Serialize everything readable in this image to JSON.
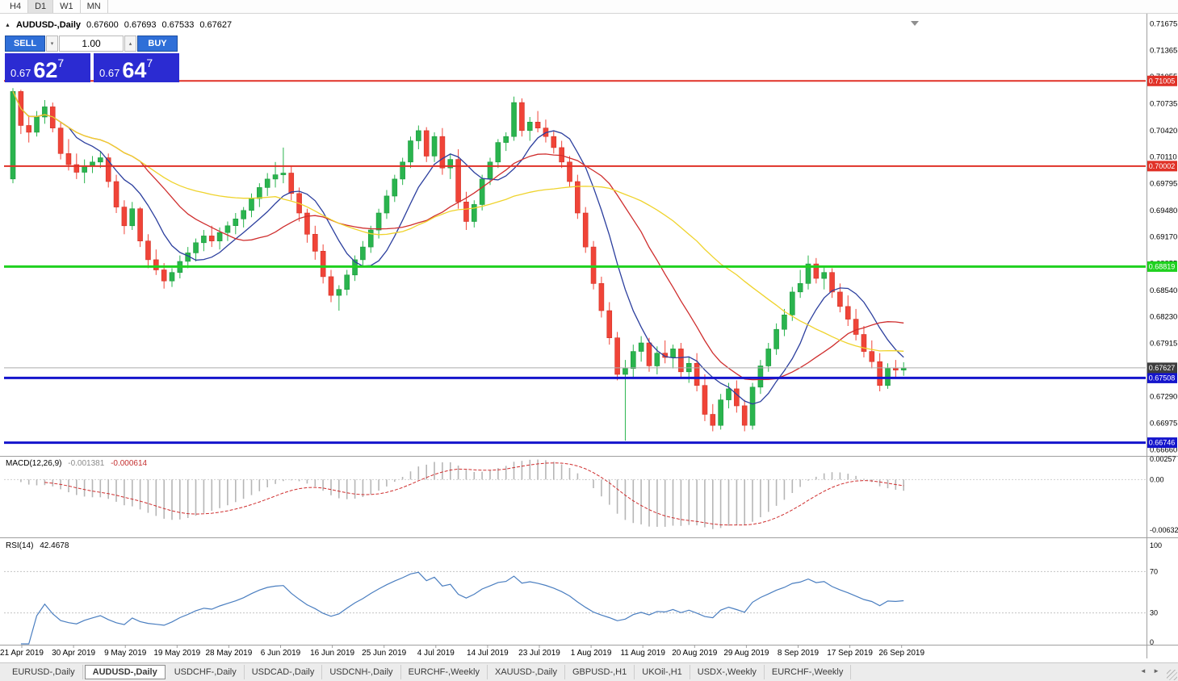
{
  "toolbar": {
    "buttons": [
      "H4",
      "D1",
      "W1",
      "MN"
    ],
    "active": "D1"
  },
  "icons": {
    "collapse": "▲",
    "spin_up": "▴",
    "spin_down": "▾",
    "tab_scroll_left": "◄",
    "tab_scroll_right": "►"
  },
  "trade_panel": {
    "sell_label": "SELL",
    "buy_label": "BUY",
    "volume": "1.00",
    "bid": {
      "prefix": "0.67",
      "pips": "62",
      "pipette": "7"
    },
    "ask": {
      "prefix": "0.67",
      "pips": "64",
      "pipette": "7"
    }
  },
  "chart_data": {
    "type": "candlestick",
    "title": {
      "symbol": "AUDUSD-,Daily",
      "open": "0.67600",
      "high": "0.67693",
      "low": "0.67533",
      "close": "0.67627"
    },
    "price_axis": {
      "max": 0.7172,
      "min": 0.666,
      "labels": [
        "0.71675",
        "0.71365",
        "0.71055",
        "0.70735",
        "0.70420",
        "0.70110",
        "0.69795",
        "0.69480",
        "0.69170",
        "0.68855",
        "0.68540",
        "0.68230",
        "0.67915",
        "0.67605",
        "0.67290",
        "0.66975",
        "0.66660"
      ]
    },
    "hlines": [
      {
        "price": 0.71005,
        "label": "0.71005",
        "color": "#e03127",
        "width": 2
      },
      {
        "price": 0.70002,
        "label": "0.70002",
        "color": "#e03127",
        "width": 2
      },
      {
        "price": 0.68819,
        "label": "0.68819",
        "color": "#1fd11f",
        "width": 3
      },
      {
        "price": 0.67508,
        "label": "0.67508",
        "color": "#1414cc",
        "width": 3
      },
      {
        "price": 0.66746,
        "label": "0.66746",
        "color": "#1414cc",
        "width": 3
      }
    ],
    "current_price": {
      "value": 0.67627,
      "label": "0.67627"
    },
    "colors": {
      "up": "#2ab44e",
      "up_stroke": "#1b9a3d",
      "down": "#f04438",
      "down_stroke": "#d23327",
      "ma_fast": "#2c3f9e",
      "ma_mid": "#cf2e2e",
      "ma_slow": "#efd32c",
      "macd_hist": "#b6b6b6",
      "macd_signal": "#cf2e2e",
      "rsi": "#4a7ec0",
      "current_line": "#aaaaaa",
      "current_tag": "#3d3d3d"
    },
    "moving_averages": [
      {
        "period": 8,
        "color": "#2c3f9e"
      },
      {
        "period": 17,
        "color": "#cf2e2e"
      },
      {
        "period": 34,
        "color": "#efd32c"
      }
    ],
    "dates": [
      "21 Apr 2019",
      "30 Apr 2019",
      "9 May 2019",
      "19 May 2019",
      "28 May 2019",
      "6 Jun 2019",
      "16 Jun 2019",
      "25 Jun 2019",
      "4 Jul 2019",
      "14 Jul 2019",
      "23 Jul 2019",
      "1 Aug 2019",
      "11 Aug 2019",
      "20 Aug 2019",
      "29 Aug 2019",
      "8 Sep 2019",
      "17 Sep 2019",
      "26 Sep 2019"
    ],
    "candles": [
      [
        0.6985,
        0.7092,
        0.698,
        0.7088
      ],
      [
        0.7088,
        0.709,
        0.7038,
        0.7048
      ],
      [
        0.7048,
        0.706,
        0.7028,
        0.704
      ],
      [
        0.704,
        0.7065,
        0.7035,
        0.7058
      ],
      [
        0.7058,
        0.7078,
        0.705,
        0.707
      ],
      [
        0.707,
        0.7075,
        0.704,
        0.7045
      ],
      [
        0.7045,
        0.7052,
        0.7008,
        0.7015
      ],
      [
        0.7015,
        0.7032,
        0.6995,
        0.7002
      ],
      [
        0.7002,
        0.7015,
        0.6985,
        0.6993
      ],
      [
        0.6993,
        0.7008,
        0.698,
        0.7
      ],
      [
        0.7,
        0.7012,
        0.6992,
        0.7005
      ],
      [
        0.7005,
        0.7018,
        0.6998,
        0.701
      ],
      [
        0.701,
        0.7015,
        0.6975,
        0.6982
      ],
      [
        0.6982,
        0.699,
        0.6945,
        0.6952
      ],
      [
        0.6952,
        0.696,
        0.692,
        0.693
      ],
      [
        0.693,
        0.6958,
        0.6925,
        0.695
      ],
      [
        0.695,
        0.6952,
        0.6905,
        0.6912
      ],
      [
        0.6912,
        0.692,
        0.688,
        0.689
      ],
      [
        0.689,
        0.6902,
        0.6872,
        0.6878
      ],
      [
        0.6878,
        0.6886,
        0.6856,
        0.6865
      ],
      [
        0.6865,
        0.688,
        0.6858,
        0.6875
      ],
      [
        0.6875,
        0.6895,
        0.6868,
        0.6888
      ],
      [
        0.6888,
        0.6905,
        0.688,
        0.6898
      ],
      [
        0.6898,
        0.6915,
        0.6888,
        0.691
      ],
      [
        0.691,
        0.6925,
        0.69,
        0.6918
      ],
      [
        0.6918,
        0.693,
        0.6905,
        0.6912
      ],
      [
        0.6912,
        0.6928,
        0.6902,
        0.6922
      ],
      [
        0.6922,
        0.6935,
        0.6912,
        0.693
      ],
      [
        0.693,
        0.6945,
        0.692,
        0.6938
      ],
      [
        0.6938,
        0.6952,
        0.6928,
        0.6948
      ],
      [
        0.6948,
        0.6968,
        0.694,
        0.6962
      ],
      [
        0.6962,
        0.698,
        0.6952,
        0.6975
      ],
      [
        0.6975,
        0.6992,
        0.6965,
        0.6985
      ],
      [
        0.6985,
        0.7005,
        0.6975,
        0.699
      ],
      [
        0.699,
        0.7022,
        0.698,
        0.6992
      ],
      [
        0.6992,
        0.7,
        0.696,
        0.6968
      ],
      [
        0.6968,
        0.6975,
        0.6935,
        0.6945
      ],
      [
        0.6945,
        0.695,
        0.691,
        0.692
      ],
      [
        0.692,
        0.693,
        0.689,
        0.69
      ],
      [
        0.69,
        0.6908,
        0.6862,
        0.687
      ],
      [
        0.687,
        0.6878,
        0.684,
        0.6848
      ],
      [
        0.6848,
        0.686,
        0.683,
        0.6855
      ],
      [
        0.6855,
        0.6878,
        0.6848,
        0.6872
      ],
      [
        0.6872,
        0.6895,
        0.6865,
        0.689
      ],
      [
        0.689,
        0.6912,
        0.6882,
        0.6905
      ],
      [
        0.6905,
        0.693,
        0.6898,
        0.6925
      ],
      [
        0.6925,
        0.695,
        0.6915,
        0.6945
      ],
      [
        0.6945,
        0.6972,
        0.6938,
        0.6965
      ],
      [
        0.6965,
        0.699,
        0.6958,
        0.6985
      ],
      [
        0.6985,
        0.701,
        0.6978,
        0.7005
      ],
      [
        0.7005,
        0.7035,
        0.6998,
        0.703
      ],
      [
        0.703,
        0.7048,
        0.702,
        0.7042
      ],
      [
        0.7042,
        0.7046,
        0.7005,
        0.7012
      ],
      [
        0.7012,
        0.704,
        0.7005,
        0.7035
      ],
      [
        0.7035,
        0.7045,
        0.699,
        0.6998
      ],
      [
        0.6998,
        0.7015,
        0.6985,
        0.7008
      ],
      [
        0.7008,
        0.702,
        0.695,
        0.6958
      ],
      [
        0.6958,
        0.697,
        0.6925,
        0.6935
      ],
      [
        0.6935,
        0.696,
        0.6928,
        0.6955
      ],
      [
        0.6955,
        0.699,
        0.6948,
        0.6985
      ],
      [
        0.6985,
        0.701,
        0.6978,
        0.7005
      ],
      [
        0.7005,
        0.7032,
        0.6998,
        0.7028
      ],
      [
        0.7028,
        0.704,
        0.7018,
        0.7035
      ],
      [
        0.7035,
        0.7082,
        0.703,
        0.7075
      ],
      [
        0.7075,
        0.708,
        0.7035,
        0.7042
      ],
      [
        0.7042,
        0.7058,
        0.703,
        0.7052
      ],
      [
        0.7052,
        0.7065,
        0.704,
        0.7045
      ],
      [
        0.7045,
        0.7055,
        0.7028,
        0.7035
      ],
      [
        0.7035,
        0.7042,
        0.7015,
        0.7022
      ],
      [
        0.7022,
        0.703,
        0.6998,
        0.7005
      ],
      [
        0.7005,
        0.7012,
        0.6975,
        0.6982
      ],
      [
        0.6982,
        0.699,
        0.6938,
        0.6945
      ],
      [
        0.6945,
        0.6952,
        0.6898,
        0.6905
      ],
      [
        0.6905,
        0.6912,
        0.6855,
        0.6862
      ],
      [
        0.6862,
        0.687,
        0.6822,
        0.683
      ],
      [
        0.683,
        0.684,
        0.679,
        0.6798
      ],
      [
        0.6798,
        0.6805,
        0.6748,
        0.6755
      ],
      [
        0.6755,
        0.6772,
        0.6677,
        0.6762
      ],
      [
        0.6762,
        0.679,
        0.6752,
        0.6782
      ],
      [
        0.6782,
        0.68,
        0.677,
        0.6792
      ],
      [
        0.6792,
        0.6798,
        0.6758,
        0.6765
      ],
      [
        0.6765,
        0.6788,
        0.6755,
        0.678
      ],
      [
        0.678,
        0.6795,
        0.6768,
        0.6775
      ],
      [
        0.6775,
        0.679,
        0.6762,
        0.6785
      ],
      [
        0.6785,
        0.6792,
        0.6752,
        0.6758
      ],
      [
        0.6758,
        0.6775,
        0.6745,
        0.6768
      ],
      [
        0.6768,
        0.678,
        0.6735,
        0.6742
      ],
      [
        0.6742,
        0.6755,
        0.67,
        0.6708
      ],
      [
        0.6708,
        0.672,
        0.6688,
        0.6695
      ],
      [
        0.6695,
        0.6732,
        0.669,
        0.6725
      ],
      [
        0.6725,
        0.6745,
        0.6715,
        0.6738
      ],
      [
        0.6738,
        0.6748,
        0.671,
        0.6718
      ],
      [
        0.6718,
        0.6725,
        0.6688,
        0.6695
      ],
      [
        0.6695,
        0.6745,
        0.669,
        0.674
      ],
      [
        0.674,
        0.6772,
        0.6732,
        0.6765
      ],
      [
        0.6765,
        0.6792,
        0.6758,
        0.6785
      ],
      [
        0.6785,
        0.6815,
        0.6778,
        0.6808
      ],
      [
        0.6808,
        0.6832,
        0.68,
        0.6825
      ],
      [
        0.6825,
        0.6858,
        0.6818,
        0.6852
      ],
      [
        0.6852,
        0.6878,
        0.6845,
        0.6862
      ],
      [
        0.6862,
        0.6895,
        0.6855,
        0.6885
      ],
      [
        0.6885,
        0.6892,
        0.6862,
        0.6868
      ],
      [
        0.6868,
        0.6882,
        0.6855,
        0.6875
      ],
      [
        0.6875,
        0.688,
        0.6845,
        0.6852
      ],
      [
        0.6852,
        0.6862,
        0.6828,
        0.6835
      ],
      [
        0.6835,
        0.6848,
        0.6812,
        0.682
      ],
      [
        0.682,
        0.6832,
        0.6795,
        0.6802
      ],
      [
        0.6802,
        0.6812,
        0.6775,
        0.6782
      ],
      [
        0.6782,
        0.6795,
        0.6762,
        0.677
      ],
      [
        0.677,
        0.678,
        0.6735,
        0.6742
      ],
      [
        0.6742,
        0.6768,
        0.6738,
        0.6762
      ],
      [
        0.6762,
        0.6772,
        0.6752,
        0.676
      ],
      [
        0.676,
        0.67693,
        0.67533,
        0.67627
      ]
    ],
    "indicators": {
      "macd": {
        "name": "MACD(12,26,9)",
        "value_main": "-0.001381",
        "value_signal": "-0.000614",
        "params": {
          "fast": 12,
          "slow": 26,
          "signal": 9
        },
        "axis_labels": [
          "0.00257",
          "0.00",
          "-0.00632"
        ]
      },
      "rsi": {
        "name": "RSI(14)",
        "value": "42.4678",
        "period": 14,
        "levels": [
          70,
          30
        ],
        "axis_labels": [
          "100",
          "70",
          "30",
          "0"
        ]
      }
    }
  },
  "tabs": {
    "items": [
      "EURUSD-,Daily",
      "AUDUSD-,Daily",
      "USDCHF-,Daily",
      "USDCAD-,Daily",
      "USDCNH-,Daily",
      "EURCHF-,Weekly",
      "XAUUSD-,Daily",
      "GBPUSD-,H1",
      "UKOil-,H1",
      "USDX-,Weekly",
      "EURCHF-,Weekly"
    ],
    "active_index": 1
  }
}
